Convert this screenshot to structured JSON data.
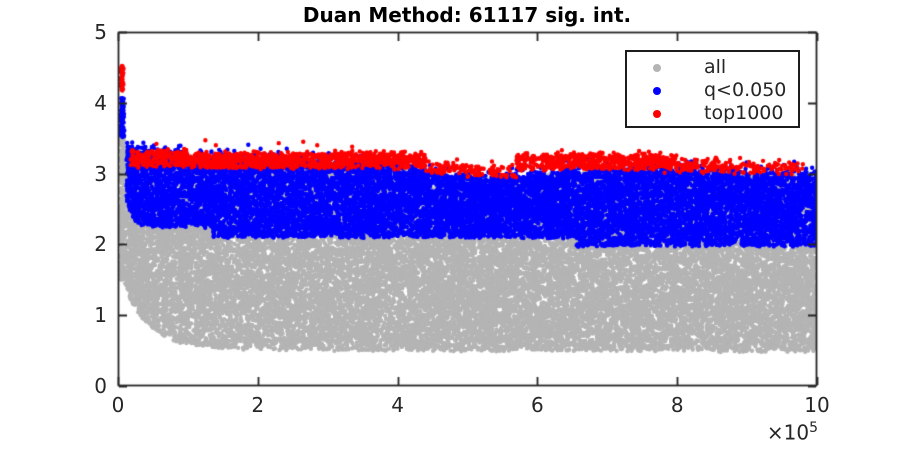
{
  "title": "Duan Method: 61117 sig. int.",
  "chart_data": {
    "type": "scatter",
    "title": "Duan Method: 61117 sig. int.",
    "background": "#ffffff",
    "axis_color": "#262626",
    "grid": false,
    "x_units": 100000,
    "xlim_units_1e5": [
      0,
      10
    ],
    "ylim": [
      0,
      5
    ],
    "xticks": {
      "values": [
        0,
        2,
        4,
        6,
        8,
        10
      ],
      "labels": [
        "0",
        "2",
        "4",
        "6",
        "8",
        "10"
      ]
    },
    "yticks": {
      "values": [
        0,
        1,
        2,
        3,
        4,
        5
      ],
      "labels": [
        "0",
        "1",
        "2",
        "3",
        "4",
        "5"
      ]
    },
    "x_exponent_label": "×10",
    "x_exponent_power": "5",
    "legend_position": "top-right",
    "legend": [
      {
        "label": "all",
        "color": "#b4b4b4"
      },
      {
        "label": "q<0.050",
        "color": "#0000ff"
      },
      {
        "label": "top1000",
        "color": "#ff0000"
      }
    ],
    "marker_radius_px": 2.2,
    "series": [
      {
        "name": "all",
        "color": "#b4b4b4",
        "spike": {
          "x_center": 0.06,
          "x_sd": 0.016,
          "y_min": 1.5,
          "y_max": 3.55,
          "count": 260
        },
        "band": {
          "x_min": 0.1,
          "x_max": 10,
          "count": 26000,
          "upper": [
            [
              0.1,
              3.42
            ],
            [
              0.3,
              3.32
            ],
            [
              0.7,
              3.27
            ],
            [
              1.5,
              3.22
            ],
            [
              2.5,
              3.18
            ],
            [
              3.5,
              3.14
            ],
            [
              4.2,
              3.07
            ],
            [
              4.7,
              2.98
            ],
            [
              5.2,
              2.92
            ],
            [
              5.7,
              2.95
            ],
            [
              6.2,
              3.0
            ],
            [
              7.0,
              3.06
            ],
            [
              8.0,
              3.04
            ],
            [
              9.0,
              3.0
            ],
            [
              10,
              2.97
            ]
          ],
          "lower": [
            [
              0.1,
              1.45
            ],
            [
              0.14,
              1.32
            ],
            [
              0.18,
              1.22
            ],
            [
              0.24,
              1.13
            ],
            [
              0.35,
              0.95
            ],
            [
              0.46,
              0.85
            ],
            [
              0.6,
              0.74
            ],
            [
              0.74,
              0.67
            ],
            [
              0.95,
              0.6
            ],
            [
              1.17,
              0.57
            ],
            [
              1.5,
              0.54
            ],
            [
              1.9,
              0.52
            ],
            [
              3.0,
              0.51
            ],
            [
              5.0,
              0.5
            ],
            [
              7.0,
              0.5
            ],
            [
              10,
              0.49
            ]
          ]
        }
      },
      {
        "name": "q<0.050",
        "color": "#0000ff",
        "spike": {
          "x_center": 0.06,
          "x_sd": 0.012,
          "y_min": 3.5,
          "y_max": 4.07,
          "count": 140
        },
        "band": {
          "x_min": 0.12,
          "x_max": 10,
          "count": 12500,
          "upper": [
            [
              0.12,
              3.38
            ],
            [
              0.3,
              3.31
            ],
            [
              0.7,
              3.26
            ],
            [
              1.5,
              3.22
            ],
            [
              2.5,
              3.18
            ],
            [
              3.5,
              3.14
            ],
            [
              4.2,
              3.07
            ],
            [
              4.7,
              2.98
            ],
            [
              5.2,
              2.92
            ],
            [
              5.7,
              2.95
            ],
            [
              6.2,
              3.0
            ],
            [
              7.0,
              3.06
            ],
            [
              8.0,
              3.04
            ],
            [
              9.0,
              3.0
            ],
            [
              10,
              2.97
            ]
          ],
          "lower": [
            [
              0.12,
              2.6
            ],
            [
              0.2,
              2.4
            ],
            [
              0.3,
              2.28
            ],
            [
              0.45,
              2.25
            ],
            [
              1.35,
              2.24
            ],
            [
              1.36,
              2.1
            ],
            [
              6.55,
              2.1
            ],
            [
              6.56,
              1.98
            ],
            [
              10,
              1.98
            ]
          ]
        },
        "fringe": {
          "count": 420,
          "spread": 0.09
        }
      },
      {
        "name": "top1000",
        "color": "#ff0000",
        "spike": {
          "x_center": 0.055,
          "x_sd": 0.01,
          "y_min": 4.17,
          "y_max": 4.53,
          "count": 80
        },
        "dots_per_unit": 270,
        "segments": [
          {
            "x0": 0.18,
            "x1": 1.0,
            "center": 3.22,
            "half": 0.11,
            "density": 1.0
          },
          {
            "x0": 1.0,
            "x1": 4.4,
            "center": 3.19,
            "half": 0.1,
            "density": 1.0
          },
          {
            "x0": 4.4,
            "x1": 5.0,
            "center": 3.08,
            "half": 0.08,
            "density": 0.35
          },
          {
            "x0": 5.0,
            "x1": 5.7,
            "center": 3.03,
            "half": 0.07,
            "density": 0.3
          },
          {
            "x0": 5.7,
            "x1": 8.0,
            "center": 3.17,
            "half": 0.1,
            "density": 0.9
          },
          {
            "x0": 8.0,
            "x1": 8.8,
            "center": 3.12,
            "half": 0.08,
            "density": 0.45
          },
          {
            "x0": 8.8,
            "x1": 9.8,
            "center": 3.08,
            "half": 0.08,
            "density": 0.25
          }
        ],
        "outliers": [
          [
            0.55,
            3.42
          ],
          [
            1.25,
            3.47
          ],
          [
            1.4,
            3.4
          ],
          [
            2.3,
            3.43
          ],
          [
            2.65,
            3.45
          ],
          [
            2.85,
            3.4
          ],
          [
            3.35,
            3.38
          ],
          [
            4.05,
            3.3
          ],
          [
            4.85,
            3.2
          ],
          [
            5.35,
            3.17
          ],
          [
            6.35,
            3.33
          ],
          [
            6.9,
            3.3
          ],
          [
            7.5,
            3.28
          ],
          [
            8.9,
            3.22
          ],
          [
            9.4,
            3.15
          ]
        ]
      }
    ]
  }
}
